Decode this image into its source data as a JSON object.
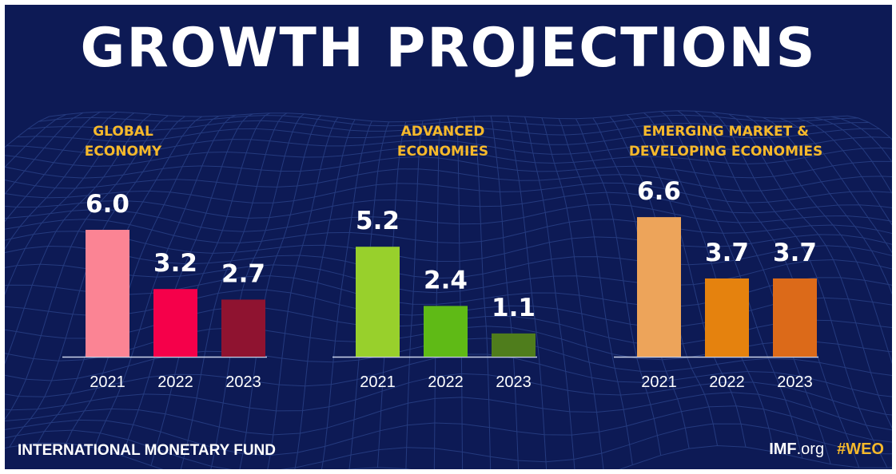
{
  "header": {
    "title": "GROWTH PROJECTIONS"
  },
  "footer": {
    "org_name": "INTERNATIONAL MONETARY FUND",
    "site_bold": "IMF",
    "site_rest": ".org",
    "hashtag": "#WEO"
  },
  "colors": {
    "background": "#0d1a55",
    "panel_title": "#f6b92b",
    "text": "#ffffff"
  },
  "chart_data": [
    {
      "type": "bar",
      "title_lines": [
        "GLOBAL",
        "ECONOMY"
      ],
      "categories": [
        "2021",
        "2022",
        "2023"
      ],
      "values": [
        6.0,
        3.2,
        2.7
      ],
      "labels": [
        "6.0",
        "3.2",
        "2.7"
      ],
      "colors": [
        "#fb8494",
        "#f5004a",
        "#8f1330"
      ]
    },
    {
      "type": "bar",
      "title_lines": [
        "ADVANCED",
        "ECONOMIES"
      ],
      "categories": [
        "2021",
        "2022",
        "2023"
      ],
      "values": [
        5.2,
        2.4,
        1.1
      ],
      "labels": [
        "5.2",
        "2.4",
        "1.1"
      ],
      "colors": [
        "#98d02c",
        "#5fba16",
        "#4f7d1c"
      ]
    },
    {
      "type": "bar",
      "title_lines": [
        "EMERGING MARKET &",
        "DEVELOPING ECONOMIES"
      ],
      "categories": [
        "2021",
        "2022",
        "2023"
      ],
      "values": [
        6.6,
        3.7,
        3.7
      ],
      "labels": [
        "6.6",
        "3.7",
        "3.7"
      ],
      "colors": [
        "#eda45a",
        "#e5820e",
        "#dc6a19"
      ]
    }
  ]
}
